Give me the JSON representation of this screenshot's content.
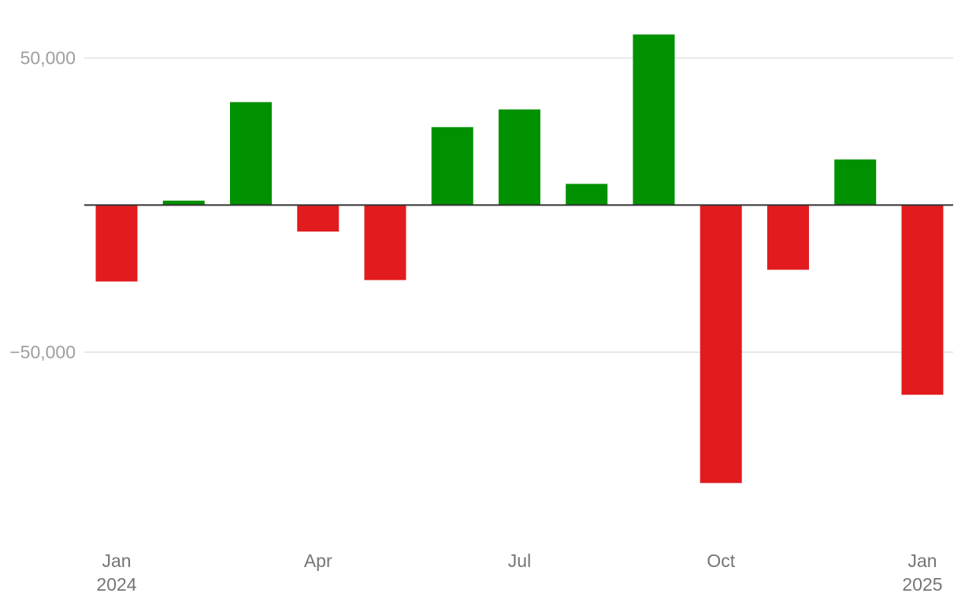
{
  "chart_data": {
    "type": "bar",
    "x": [
      "2024-01",
      "2024-02",
      "2024-03",
      "2024-04",
      "2024-05",
      "2024-06",
      "2024-07",
      "2024-08",
      "2024-09",
      "2024-10",
      "2024-11",
      "2024-12",
      "2025-01"
    ],
    "values": [
      -26000,
      1500,
      35000,
      -9000,
      -25500,
      26500,
      32500,
      7200,
      58000,
      -94500,
      -22000,
      15500,
      -64500
    ],
    "ylim": [
      -107000,
      59000
    ],
    "y_ticks": [
      {
        "value": 50000,
        "label": "50,000"
      },
      {
        "value": -50000,
        "label": "−50,000"
      }
    ],
    "x_ticks": [
      {
        "x": "2024-01",
        "label": "Jan",
        "sublabel": "2024"
      },
      {
        "x": "2024-04",
        "label": "Apr",
        "sublabel": ""
      },
      {
        "x": "2024-07",
        "label": "Jul",
        "sublabel": ""
      },
      {
        "x": "2024-10",
        "label": "Oct",
        "sublabel": ""
      },
      {
        "x": "2025-01",
        "label": "Jan",
        "sublabel": "2025"
      }
    ],
    "colors": {
      "positive": "#009100",
      "negative": "#e21c1e"
    },
    "grid": true,
    "legend": "none",
    "title": "",
    "xlabel": "",
    "ylabel": ""
  }
}
